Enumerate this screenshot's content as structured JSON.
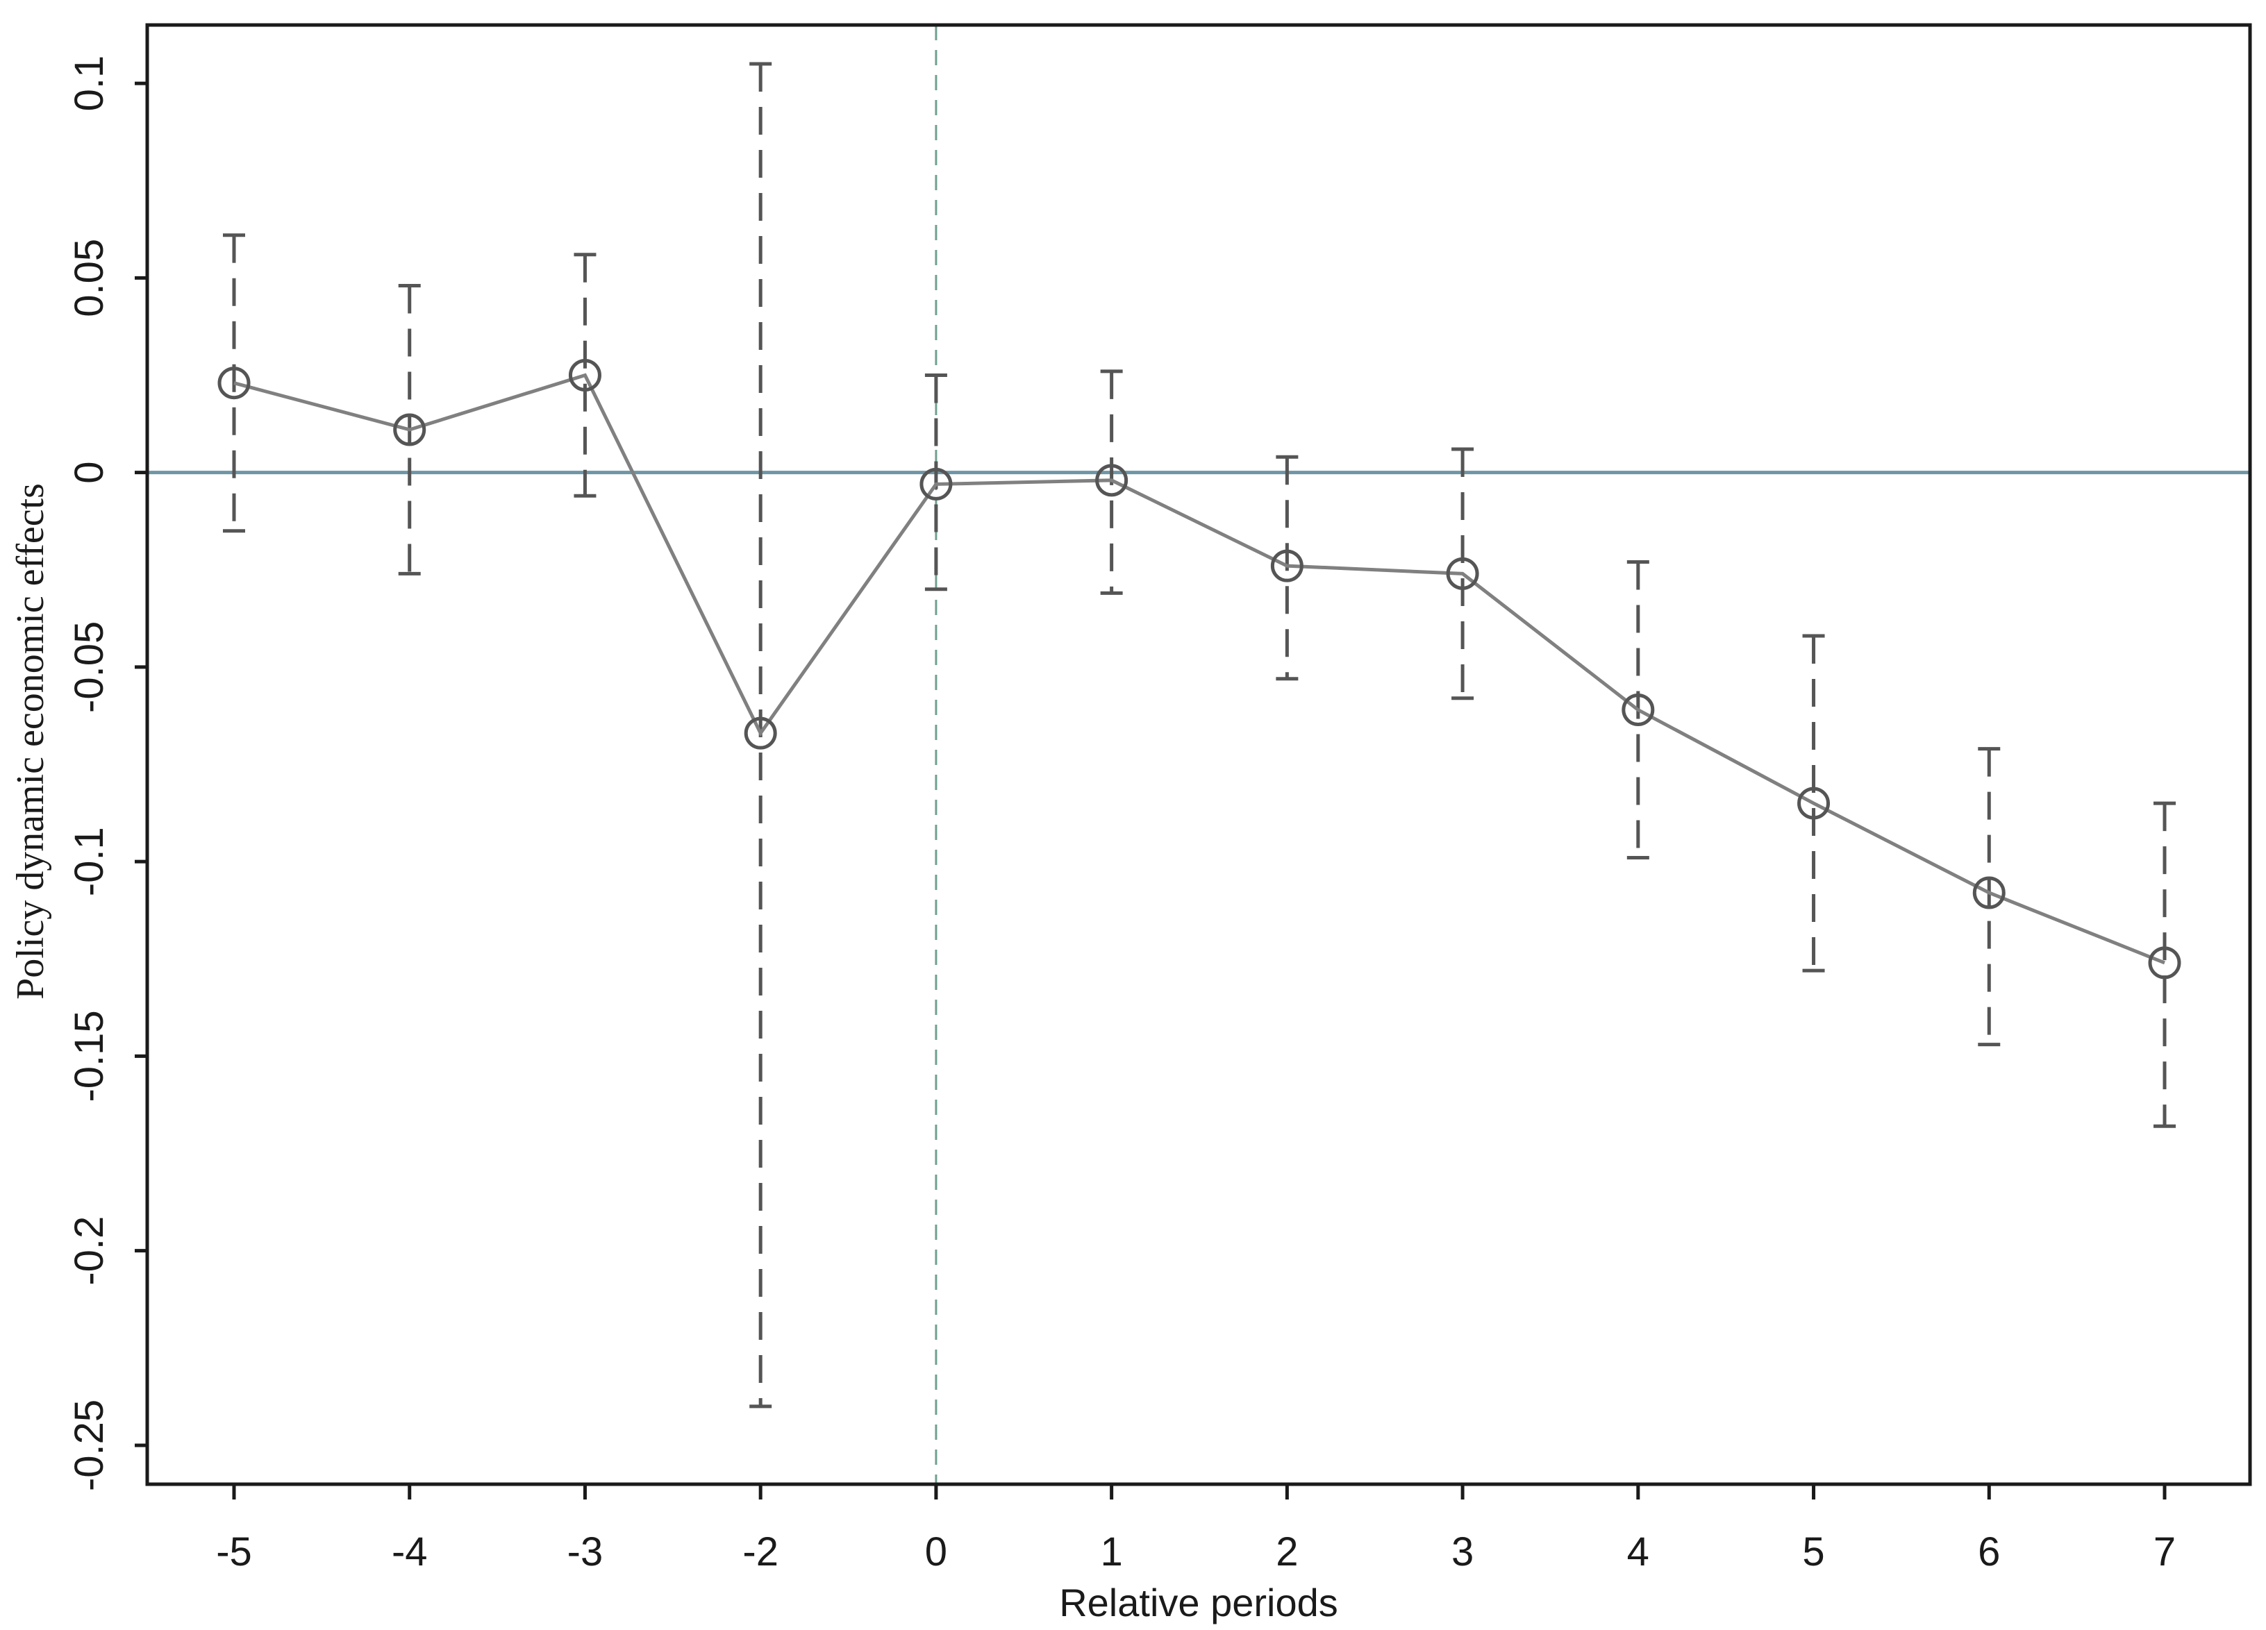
{
  "chart_data": {
    "type": "line",
    "title": "",
    "xlabel": "Relative periods",
    "ylabel": "Policy dynamic economic effects",
    "categories": [
      "-5",
      "-4",
      "-3",
      "-2",
      "0",
      "1",
      "2",
      "3",
      "4",
      "5",
      "6",
      "7"
    ],
    "series": [
      {
        "values": [
          0.023,
          0.011,
          0.025,
          -0.067,
          -0.003,
          -0.002,
          -0.024,
          -0.026,
          -0.061,
          -0.085,
          -0.108,
          -0.126
        ],
        "ci_lower": [
          -0.015,
          -0.026,
          -0.006,
          -0.24,
          -0.03,
          -0.031,
          -0.053,
          -0.058,
          -0.099,
          -0.128,
          -0.147,
          -0.168
        ],
        "ci_upper": [
          0.061,
          0.048,
          0.056,
          0.105,
          0.025,
          0.026,
          0.004,
          0.006,
          -0.023,
          -0.042,
          -0.071,
          -0.085
        ]
      }
    ],
    "yticks": [
      "0.1",
      "0.05",
      "0",
      "-0.05",
      "-0.1",
      "-0.15",
      "-0.2",
      "-0.25"
    ],
    "ytick_values": [
      0.1,
      0.05,
      0,
      -0.05,
      -0.1,
      -0.15,
      -0.2,
      -0.25
    ],
    "ylim": [
      -0.26,
      0.115
    ],
    "reference_lines": {
      "horizontal_y": 0,
      "vertical_category": "0"
    },
    "grid": false,
    "colors": {
      "series_line": "#808080",
      "marker": "#555555",
      "ci": "#555555",
      "hline": "#6f96a6",
      "vline": "#6fa090",
      "axis": "#1a1a1a"
    }
  }
}
